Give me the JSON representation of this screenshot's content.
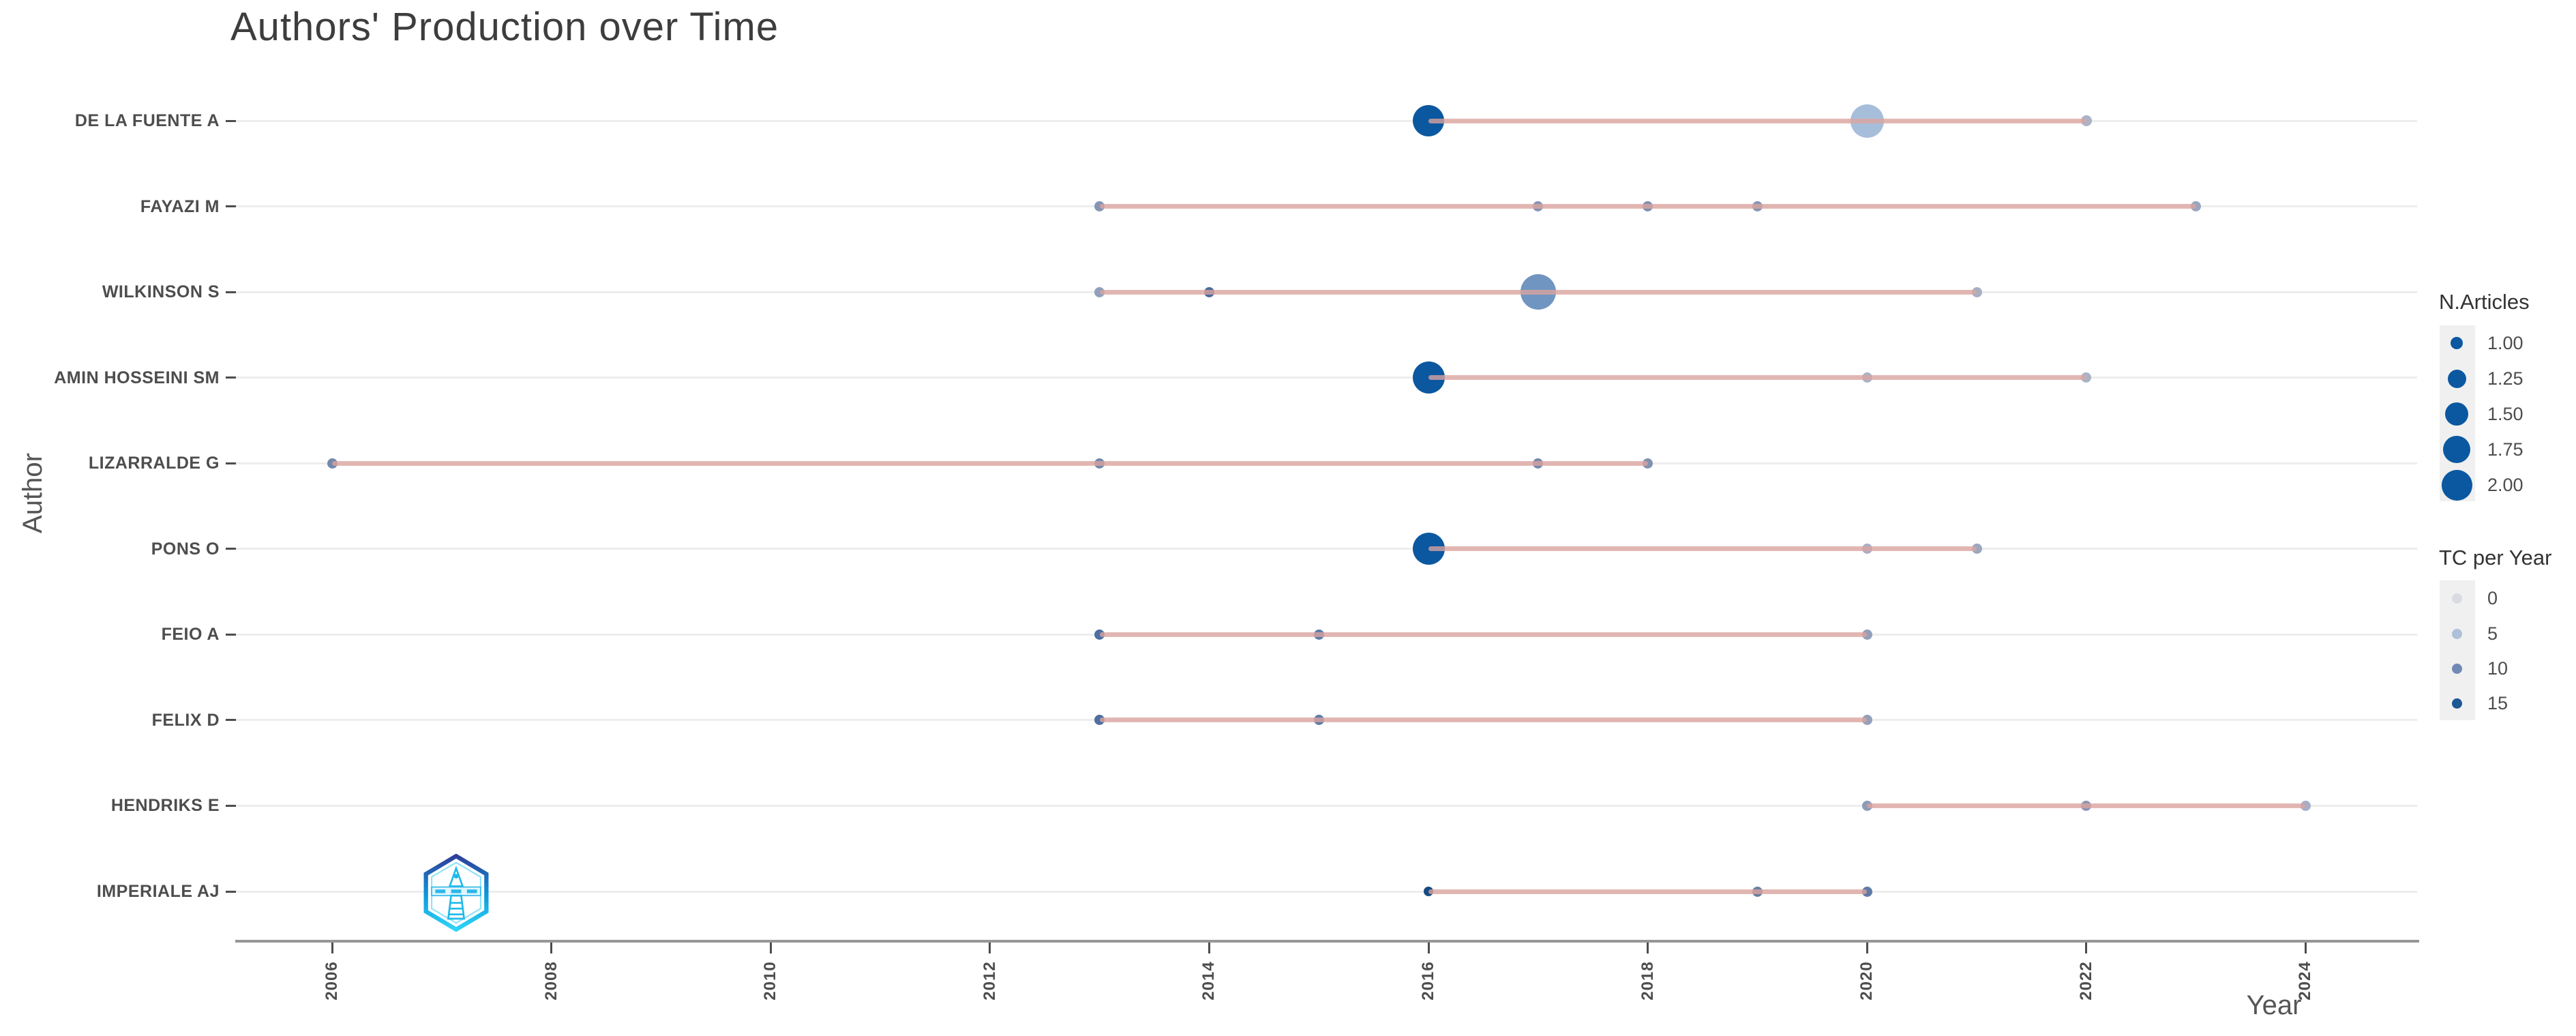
{
  "title": "Authors' Production over Time",
  "chart_data": {
    "type": "scatter",
    "title": "Authors' Production over Time",
    "xlabel": "Year",
    "ylabel": "Author",
    "x_range": [
      2005,
      2025
    ],
    "x_ticks": [
      "2006",
      "2008",
      "2010",
      "2012",
      "2014",
      "2016",
      "2018",
      "2020",
      "2022",
      "2024"
    ],
    "grid": "horizontal-per-author-row",
    "legend_position": "right",
    "series": [
      {
        "author": "DE LA FUENTE A",
        "line": [
          2016,
          2022
        ],
        "points": [
          {
            "year": 2016,
            "n_articles": 2,
            "tc_per_year": 15,
            "d": 46,
            "color": "#0B58A0"
          },
          {
            "year": 2020,
            "n_articles": 2,
            "tc_per_year": 3,
            "d": 49,
            "color": "#A7BEDB"
          },
          {
            "year": 2022,
            "n_articles": 1,
            "tc_per_year": 2,
            "d": 16,
            "color": "#AAB3C8"
          }
        ]
      },
      {
        "author": "FAYAZI M",
        "line": [
          2013,
          2023
        ],
        "points": [
          {
            "year": 2013,
            "n_articles": 1,
            "tc_per_year": 7,
            "d": 15,
            "color": "#8595B3"
          },
          {
            "year": 2017,
            "n_articles": 1,
            "tc_per_year": 7,
            "d": 15,
            "color": "#8595B3"
          },
          {
            "year": 2018,
            "n_articles": 1,
            "tc_per_year": 8,
            "d": 15,
            "color": "#7E90B0"
          },
          {
            "year": 2019,
            "n_articles": 1,
            "tc_per_year": 7,
            "d": 15,
            "color": "#8595B3"
          },
          {
            "year": 2023,
            "n_articles": 1,
            "tc_per_year": 5,
            "d": 15,
            "color": "#9AA6BF"
          }
        ]
      },
      {
        "author": "WILKINSON S",
        "line": [
          2013,
          2021
        ],
        "points": [
          {
            "year": 2013,
            "n_articles": 1,
            "tc_per_year": 6,
            "d": 15,
            "color": "#90A0BC"
          },
          {
            "year": 2014,
            "n_articles": 1,
            "tc_per_year": 11,
            "d": 15,
            "color": "#4A6B9C"
          },
          {
            "year": 2017,
            "n_articles": 2,
            "tc_per_year": 7,
            "d": 52,
            "color": "#7195C1"
          },
          {
            "year": 2021,
            "n_articles": 1,
            "tc_per_year": 3,
            "d": 15,
            "color": "#A7B0C4"
          }
        ]
      },
      {
        "author": "AMIN HOSSEINI SM",
        "line": [
          2016,
          2022
        ],
        "points": [
          {
            "year": 2016,
            "n_articles": 2,
            "tc_per_year": 15,
            "d": 47,
            "color": "#0B58A0"
          },
          {
            "year": 2020,
            "n_articles": 1,
            "tc_per_year": 3,
            "d": 15,
            "color": "#A9B3C7"
          },
          {
            "year": 2022,
            "n_articles": 1,
            "tc_per_year": 3,
            "d": 15,
            "color": "#A9B3C7"
          }
        ]
      },
      {
        "author": "LIZARRALDE G",
        "line": [
          2006,
          2018
        ],
        "points": [
          {
            "year": 2006,
            "n_articles": 1,
            "tc_per_year": 8,
            "d": 15,
            "color": "#7389AB"
          },
          {
            "year": 2013,
            "n_articles": 1,
            "tc_per_year": 8,
            "d": 15,
            "color": "#7389AB"
          },
          {
            "year": 2017,
            "n_articles": 1,
            "tc_per_year": 8,
            "d": 15,
            "color": "#7389AB"
          },
          {
            "year": 2018,
            "n_articles": 1,
            "tc_per_year": 7,
            "d": 15,
            "color": "#8192B1"
          }
        ]
      },
      {
        "author": "PONS O",
        "line": [
          2016,
          2021
        ],
        "points": [
          {
            "year": 2016,
            "n_articles": 2,
            "tc_per_year": 15,
            "d": 47,
            "color": "#0B58A0"
          },
          {
            "year": 2020,
            "n_articles": 1,
            "tc_per_year": 3,
            "d": 15,
            "color": "#ABAEC7"
          },
          {
            "year": 2021,
            "n_articles": 1,
            "tc_per_year": 4,
            "d": 15,
            "color": "#9CA7C0"
          }
        ]
      },
      {
        "author": "FEIO A",
        "line": [
          2013,
          2020
        ],
        "points": [
          {
            "year": 2013,
            "n_articles": 1,
            "tc_per_year": 11,
            "d": 15,
            "color": "#4E6F9F"
          },
          {
            "year": 2015,
            "n_articles": 1,
            "tc_per_year": 10,
            "d": 15,
            "color": "#5F7BA8"
          },
          {
            "year": 2020,
            "n_articles": 1,
            "tc_per_year": 5,
            "d": 15,
            "color": "#93A0BB"
          }
        ]
      },
      {
        "author": "FELIX D",
        "line": [
          2013,
          2020
        ],
        "points": [
          {
            "year": 2013,
            "n_articles": 1,
            "tc_per_year": 11,
            "d": 15,
            "color": "#4E6F9F"
          },
          {
            "year": 2015,
            "n_articles": 1,
            "tc_per_year": 10,
            "d": 15,
            "color": "#5F7BA8"
          },
          {
            "year": 2020,
            "n_articles": 1,
            "tc_per_year": 5,
            "d": 15,
            "color": "#93A0BB"
          }
        ]
      },
      {
        "author": "HENDRIKS E",
        "line": [
          2020,
          2024
        ],
        "points": [
          {
            "year": 2020,
            "n_articles": 1,
            "tc_per_year": 6,
            "d": 15,
            "color": "#8C9BB8"
          },
          {
            "year": 2022,
            "n_articles": 1,
            "tc_per_year": 6,
            "d": 15,
            "color": "#8C95B5"
          },
          {
            "year": 2024,
            "n_articles": 1,
            "tc_per_year": 3,
            "d": 15,
            "color": "#A7AFC6"
          }
        ]
      },
      {
        "author": "IMPERIALE AJ",
        "line": [
          2016,
          2020
        ],
        "points": [
          {
            "year": 2016,
            "n_articles": 1,
            "tc_per_year": 14,
            "d": 14,
            "color": "#174A80"
          },
          {
            "year": 2019,
            "n_articles": 1,
            "tc_per_year": 9,
            "d": 15,
            "color": "#69819F"
          },
          {
            "year": 2020,
            "n_articles": 1,
            "tc_per_year": 10,
            "d": 15,
            "color": "#5F7BA6"
          }
        ]
      }
    ],
    "size_legend": {
      "title": "N.Articles",
      "labels": [
        "1.00",
        "1.25",
        "1.50",
        "1.75",
        "2.00"
      ],
      "dot_diameters": [
        18,
        27,
        34,
        40,
        45
      ],
      "dot_color": "#0B58A0"
    },
    "color_legend": {
      "title": "TC per Year",
      "labels": [
        "0",
        "5",
        "10",
        "15"
      ],
      "colors": [
        "#D8DBE2",
        "#AFC0D8",
        "#7189B4",
        "#1D5795"
      ],
      "dot_diameter": 15
    },
    "colors": {
      "range_line": "#dca49f",
      "gridline": "#ededed",
      "axis_line": "#979797",
      "dark_dot": "#0B58A0"
    }
  }
}
